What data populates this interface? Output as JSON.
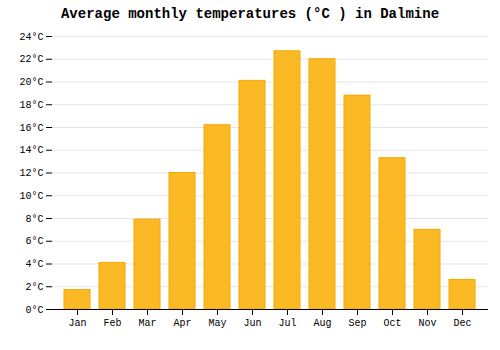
{
  "chart_data": {
    "type": "bar",
    "title": "Average monthly temperatures (°C ) in Dalmine",
    "categories": [
      "Jan",
      "Feb",
      "Mar",
      "Apr",
      "May",
      "Jun",
      "Jul",
      "Aug",
      "Sep",
      "Oct",
      "Nov",
      "Dec"
    ],
    "values": [
      1.7,
      4.1,
      7.9,
      12.0,
      16.2,
      20.1,
      22.7,
      22.0,
      18.8,
      13.3,
      7.0,
      2.6
    ],
    "color": "#FBBA25",
    "ylim": [
      0,
      24
    ],
    "yticks": [
      {
        "value": 0,
        "label": "0°C"
      },
      {
        "value": 2,
        "label": "2°C"
      },
      {
        "value": 4,
        "label": "4°C"
      },
      {
        "value": 6,
        "label": "6°C"
      },
      {
        "value": 8,
        "label": "8°C"
      },
      {
        "value": 10,
        "label": "10°C"
      },
      {
        "value": 12,
        "label": "12°C"
      },
      {
        "value": 14,
        "label": "14°C"
      },
      {
        "value": 16,
        "label": "16°C"
      },
      {
        "value": 18,
        "label": "18°C"
      },
      {
        "value": 20,
        "label": "20°C"
      },
      {
        "value": 22,
        "label": "22°C"
      },
      {
        "value": 24,
        "label": "24°C"
      }
    ],
    "grid": true
  }
}
